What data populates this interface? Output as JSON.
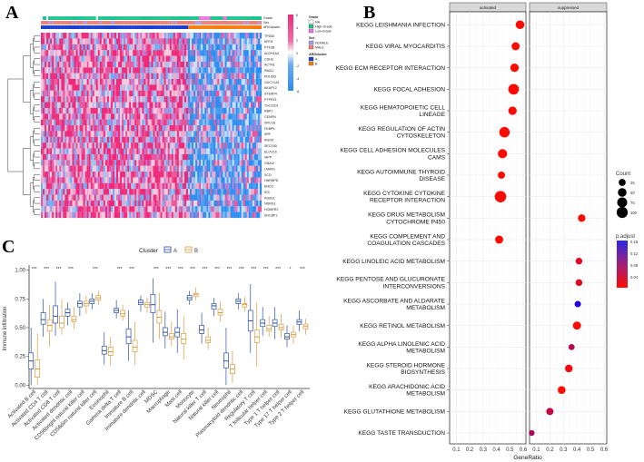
{
  "panels": {
    "a": "A",
    "b": "B",
    "c": "C"
  },
  "heatmap": {
    "annotation_labels": [
      "Grade",
      "Sex",
      "ARGcluster"
    ],
    "genes": [
      "TPD52",
      "KRT8",
      "PTK2B",
      "ALDH1A3",
      "CDH3",
      "ACTN1",
      "PADI1",
      "PDLIM3",
      "GUCY1A1",
      "AKAP12",
      "STEAP4",
      "PTPRZ1",
      "TSC22D1",
      "RBP1",
      "CENPN",
      "XRCC6",
      "FKBP5",
      "SRF",
      "RGS5",
      "SEC31B",
      "ELOVL6",
      "IAPP",
      "GNAI2",
      "LMAN1",
      "SCD",
      "HNRNPD",
      "ENO3",
      "ID3",
      "INSIG1",
      "NDRG1",
      "HOMER2",
      "SHCBP1"
    ],
    "colorbar_ticks": [
      "6",
      "4",
      "2",
      "0",
      "-2",
      "-4",
      "-6"
    ],
    "legend": {
      "grade_title": "Grade",
      "grade_items": [
        "NA",
        "High-Grade",
        "Low-Grade"
      ],
      "sex_title": "Sex",
      "sex_items": [
        "FEMALE",
        "MALE"
      ],
      "cluster_title": "ARGcluster",
      "cluster_items": [
        "A",
        "B"
      ]
    },
    "colors": {
      "high": "#f0287a",
      "mid": "#ffffff",
      "low": "#2d8cf0",
      "na": "#ffffff",
      "high_grade": "#1fc590",
      "low_grade": "#f075e0",
      "female": "#b39cf0",
      "male": "#f08078",
      "cluster_a": "#1a3fd0",
      "cluster_b": "#f57f0a"
    },
    "cluster_a_fraction": 0.67
  },
  "chart_data": [
    {
      "type": "scatter",
      "title": "",
      "xlabel": "GeneRatio",
      "facets": [
        "activated",
        "suppressed"
      ],
      "xlim": [
        0.05,
        0.62
      ],
      "xticks": [
        "0.1",
        "0.2",
        "0.3",
        "0.4",
        "0.5",
        "0.6"
      ],
      "legend": {
        "size_title": "Count",
        "size_items": [
          "25",
          "50",
          "75",
          "100"
        ],
        "color_title": "p.adjust",
        "color_ticks": [
          "0.16",
          "0.12",
          "0.08",
          "0.04"
        ]
      },
      "points": [
        {
          "pathway": [
            "KEGG LEISHMANIA INFECTION"
          ],
          "facet": "activated",
          "ratio": 0.576,
          "count": 50,
          "padj": 0.01
        },
        {
          "pathway": [
            "KEGG VIRAL MYOCARDITIS"
          ],
          "facet": "activated",
          "ratio": 0.543,
          "count": 40,
          "padj": 0.01
        },
        {
          "pathway": [
            "KEGG ECM RECEPTOR INTERACTION"
          ],
          "facet": "activated",
          "ratio": 0.535,
          "count": 45,
          "padj": 0.01
        },
        {
          "pathway": [
            "KEGG FOCAL ADHESION"
          ],
          "facet": "activated",
          "ratio": 0.528,
          "count": 90,
          "padj": 0.01
        },
        {
          "pathway": [
            "KEGG HEMATOPOIETIC CELL",
            "LINEAGE"
          ],
          "facet": "activated",
          "ratio": 0.52,
          "count": 45,
          "padj": 0.01
        },
        {
          "pathway": [
            "KEGG REGULATION OF ACTIN",
            "CYTOSKELETON"
          ],
          "facet": "activated",
          "ratio": 0.46,
          "count": 85,
          "padj": 0.01
        },
        {
          "pathway": [
            "KEGG CELL ADHESION MOLECULES",
            "CAMS"
          ],
          "facet": "activated",
          "ratio": 0.445,
          "count": 60,
          "padj": 0.01
        },
        {
          "pathway": [
            "KEGG AUTOIMMUNE THYROID",
            "DISEASE"
          ],
          "facet": "activated",
          "ratio": 0.437,
          "count": 28,
          "padj": 0.01
        },
        {
          "pathway": [
            "KEGG CYTOKINE CYTOKINE",
            "RECEPTOR INTERACTION"
          ],
          "facet": "activated",
          "ratio": 0.43,
          "count": 110,
          "padj": 0.01
        },
        {
          "pathway": [
            "KEGG DRUG METABOLISM",
            "CYTOCHROME P450"
          ],
          "facet": "suppressed",
          "ratio": 0.435,
          "count": 32,
          "padj": 0.01
        },
        {
          "pathway": [
            "KEGG COMPLEMENT AND",
            "COAGULATION CASCADES"
          ],
          "facet": "activated",
          "ratio": 0.42,
          "count": 40,
          "padj": 0.01
        },
        {
          "pathway": [
            "KEGG LINOLEIC ACID METABOLISM"
          ],
          "facet": "suppressed",
          "ratio": 0.415,
          "count": 22,
          "padj": 0.03
        },
        {
          "pathway": [
            "KEGG PENTOSE AND GLUCURONATE",
            "INTERCONVERSIONS"
          ],
          "facet": "suppressed",
          "ratio": 0.415,
          "count": 22,
          "padj": 0.03
        },
        {
          "pathway": [
            "KEGG ASCORBATE AND ALDARATE",
            "METABOLISM"
          ],
          "facet": "suppressed",
          "ratio": 0.406,
          "count": 18,
          "padj": 0.16
        },
        {
          "pathway": [
            "KEGG RETINOL METABOLISM"
          ],
          "facet": "suppressed",
          "ratio": 0.4,
          "count": 40,
          "padj": 0.01
        },
        {
          "pathway": [
            "KEGG ALPHA LINOLENIC ACID",
            "METABOLISM"
          ],
          "facet": "suppressed",
          "ratio": 0.36,
          "count": 16,
          "padj": 0.06
        },
        {
          "pathway": [
            "KEGG STEROID HORMONE",
            "BIOSYNTHESIS"
          ],
          "facet": "suppressed",
          "ratio": 0.34,
          "count": 34,
          "padj": 0.02
        },
        {
          "pathway": [
            "KEGG ARACHIDONIC ACID",
            "METABOLISM"
          ],
          "facet": "suppressed",
          "ratio": 0.287,
          "count": 36,
          "padj": 0.01
        },
        {
          "pathway": [
            "KEGG GLUTATHIONE METABOLISM"
          ],
          "facet": "suppressed",
          "ratio": 0.2,
          "count": 28,
          "padj": 0.05
        },
        {
          "pathway": [
            "KEGG TASTE TRANSDUCTION"
          ],
          "facet": "suppressed",
          "ratio": 0.066,
          "count": 12,
          "padj": 0.07
        }
      ]
    },
    {
      "type": "box",
      "ylabel": "Immune infiltration",
      "ylim": [
        0,
        1
      ],
      "yticks": [
        "0.00",
        "0.25",
        "0.50",
        "0.75",
        "1.00"
      ],
      "legend": {
        "title": "Cluster",
        "items": [
          "A",
          "B"
        ]
      },
      "colors": {
        "A": "#2a4fa8",
        "B": "#d99a3a"
      },
      "categories": [
        {
          "name": "Activated B cell",
          "sig": "***",
          "A": [
            0,
            0.14,
            0.21,
            0.28,
            0.5
          ],
          "B": [
            0,
            0.07,
            0.14,
            0.22,
            0.45
          ]
        },
        {
          "name": "Activated CD4 T cell",
          "sig": "***",
          "A": [
            0.42,
            0.53,
            0.57,
            0.63,
            0.75
          ],
          "B": [
            0.33,
            0.47,
            0.52,
            0.57,
            0.7
          ]
        },
        {
          "name": "Activated CD8 T cell",
          "sig": "***",
          "A": [
            0.43,
            0.54,
            0.6,
            0.69,
            0.9
          ],
          "B": [
            0.44,
            0.5,
            0.54,
            0.6,
            0.75
          ]
        },
        {
          "name": "Activated dendritic cell",
          "sig": "***",
          "A": [
            0.52,
            0.6,
            0.63,
            0.66,
            0.72
          ],
          "B": [
            0.49,
            0.55,
            0.57,
            0.6,
            0.68
          ]
        },
        {
          "name": "CD56bright natural killer cell",
          "sig": "",
          "A": [
            0.6,
            0.68,
            0.71,
            0.73,
            0.8
          ],
          "B": [
            0.62,
            0.69,
            0.71,
            0.73,
            0.78
          ]
        },
        {
          "name": "CD56dim natural killer cell",
          "sig": "***",
          "A": [
            0.66,
            0.71,
            0.73,
            0.75,
            0.8
          ],
          "B": [
            0.7,
            0.74,
            0.76,
            0.78,
            0.82
          ]
        },
        {
          "name": "Eosinophil",
          "sig": "",
          "A": [
            0.18,
            0.27,
            0.3,
            0.34,
            0.46
          ],
          "B": [
            0.17,
            0.26,
            0.29,
            0.33,
            0.42
          ]
        },
        {
          "name": "Gamma delta T cell",
          "sig": "***",
          "A": [
            0.58,
            0.63,
            0.65,
            0.67,
            0.74
          ],
          "B": [
            0.56,
            0.6,
            0.62,
            0.65,
            0.7
          ]
        },
        {
          "name": "Immature B cell",
          "sig": "***",
          "A": [
            0.21,
            0.36,
            0.42,
            0.49,
            0.65
          ],
          "B": [
            0.18,
            0.29,
            0.33,
            0.39,
            0.55
          ]
        },
        {
          "name": "Immature dendritic cell",
          "sig": "",
          "A": [
            0.64,
            0.7,
            0.72,
            0.74,
            0.78
          ],
          "B": [
            0.63,
            0.68,
            0.7,
            0.72,
            0.76
          ]
        },
        {
          "name": "MDSC",
          "sig": "***",
          "A": [
            0.37,
            0.63,
            0.7,
            0.79,
            0.93
          ],
          "B": [
            0.4,
            0.54,
            0.59,
            0.65,
            0.8
          ]
        },
        {
          "name": "Macrophage",
          "sig": "***",
          "A": [
            0.32,
            0.43,
            0.46,
            0.5,
            0.64
          ],
          "B": [
            0.34,
            0.4,
            0.42,
            0.45,
            0.55
          ]
        },
        {
          "name": "Mast cell",
          "sig": "***",
          "A": [
            0.28,
            0.42,
            0.46,
            0.5,
            0.66
          ],
          "B": [
            0.22,
            0.36,
            0.4,
            0.45,
            0.6
          ]
        },
        {
          "name": "Monocyte",
          "sig": "***",
          "A": [
            0.7,
            0.74,
            0.76,
            0.78,
            0.82
          ],
          "B": [
            0.74,
            0.77,
            0.79,
            0.8,
            0.85
          ]
        },
        {
          "name": "Natural killer T cell",
          "sig": "***",
          "A": [
            0.36,
            0.45,
            0.48,
            0.52,
            0.63
          ],
          "B": [
            0.31,
            0.37,
            0.39,
            0.42,
            0.5
          ]
        },
        {
          "name": "Natural killer cell",
          "sig": "***",
          "A": [
            0.6,
            0.66,
            0.69,
            0.71,
            0.76
          ],
          "B": [
            0.55,
            0.61,
            0.63,
            0.66,
            0.73
          ]
        },
        {
          "name": "Neutrophil",
          "sig": "***",
          "A": [
            0,
            0.15,
            0.21,
            0.28,
            0.5
          ],
          "B": [
            0.02,
            0.1,
            0.14,
            0.18,
            0.3
          ]
        },
        {
          "name": "Plasmacytoid dendritic cell",
          "sig": "***",
          "A": [
            0.66,
            0.71,
            0.73,
            0.75,
            0.8
          ],
          "B": [
            0.64,
            0.68,
            0.7,
            0.71,
            0.77
          ]
        },
        {
          "name": "Regulatory T cell",
          "sig": "***",
          "A": [
            0.28,
            0.47,
            0.56,
            0.65,
            0.88
          ],
          "B": [
            0.16,
            0.37,
            0.42,
            0.48,
            0.72
          ]
        },
        {
          "name": "T follicular helper cell",
          "sig": "***",
          "A": [
            0.43,
            0.51,
            0.54,
            0.57,
            0.68
          ],
          "B": [
            0.42,
            0.47,
            0.49,
            0.52,
            0.6
          ]
        },
        {
          "name": "Type 1 T helper cell",
          "sig": "***",
          "A": [
            0.4,
            0.51,
            0.54,
            0.57,
            0.68
          ],
          "B": [
            0.41,
            0.48,
            0.5,
            0.53,
            0.62
          ]
        },
        {
          "name": "Type 17 T helper cell",
          "sig": "*",
          "A": [
            0.33,
            0.4,
            0.42,
            0.45,
            0.52
          ],
          "B": [
            0.36,
            0.42,
            0.44,
            0.46,
            0.52
          ]
        },
        {
          "name": "Type 2 T helper cell",
          "sig": "***",
          "A": [
            0.47,
            0.53,
            0.55,
            0.57,
            0.65
          ],
          "B": [
            0.44,
            0.49,
            0.51,
            0.53,
            0.58
          ]
        }
      ]
    }
  ]
}
